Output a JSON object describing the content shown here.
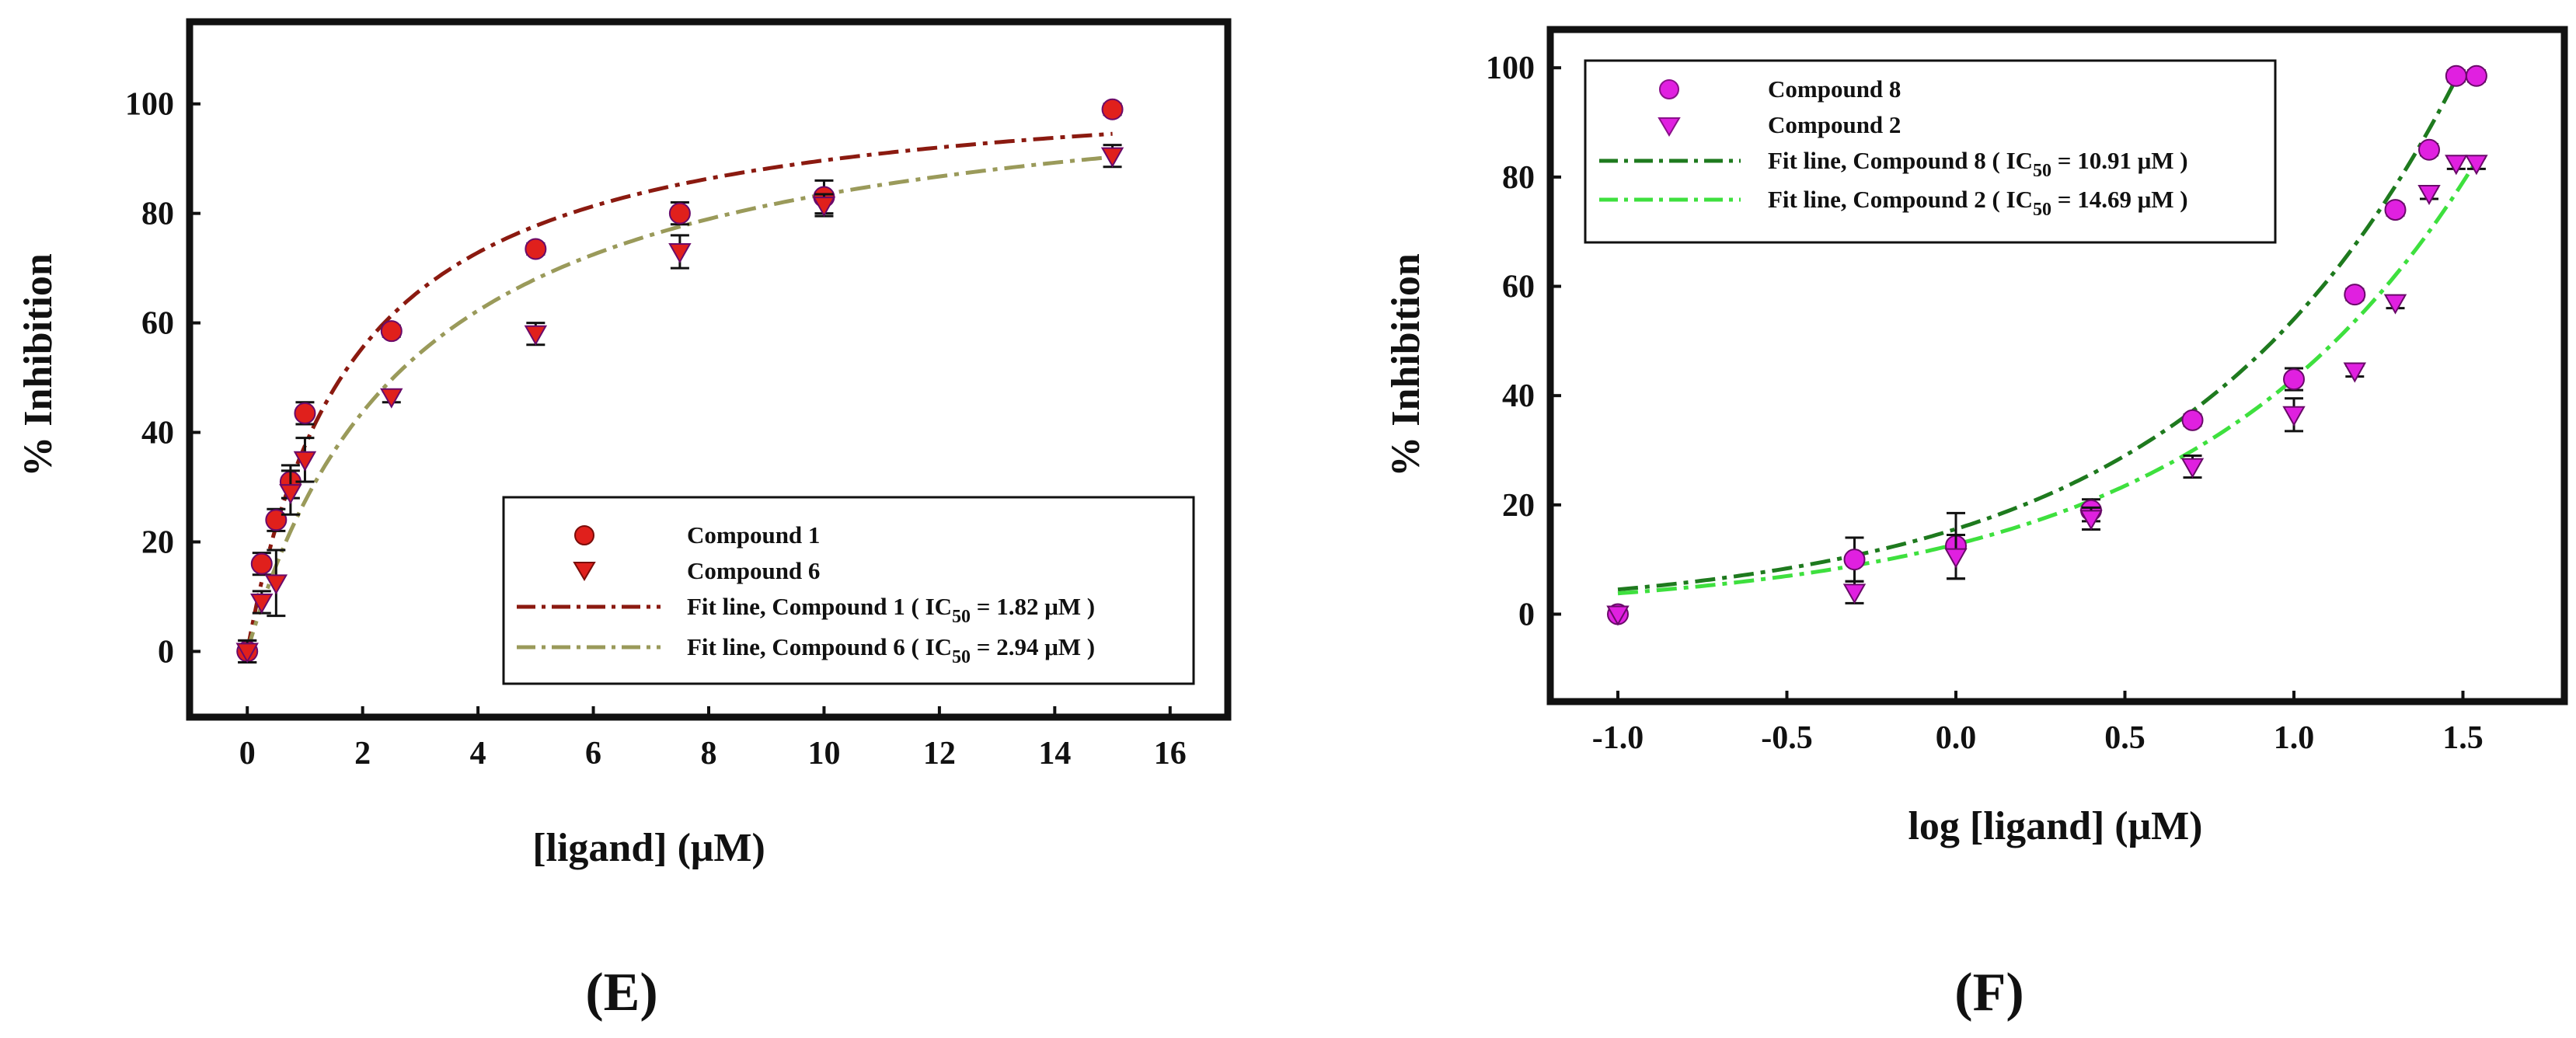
{
  "panels": {
    "E": {
      "label": "(E)"
    },
    "F": {
      "label": "(F)"
    }
  },
  "chart_data": [
    {
      "type": "scatter",
      "panel": "(E)",
      "xlabel": "[ligand] (μM)",
      "ylabel": "% Inhibition",
      "xlim": [
        -1,
        17
      ],
      "ylim": [
        -12,
        115
      ],
      "xticks": [
        0,
        2,
        4,
        6,
        8,
        10,
        12,
        14,
        16
      ],
      "yticks": [
        0,
        20,
        40,
        60,
        80,
        100
      ],
      "legend_position": "bottom-right",
      "series": [
        {
          "name": "Compound 1",
          "marker": "circle",
          "color": "#e0201c",
          "x": [
            0,
            0.25,
            0.5,
            0.75,
            1,
            2.5,
            5,
            7.5,
            10,
            15
          ],
          "y": [
            0,
            16,
            24,
            31,
            43.5,
            58.5,
            73.5,
            80,
            83,
            99
          ],
          "err": [
            2,
            2,
            2,
            3,
            2,
            1,
            1,
            2,
            3,
            1
          ]
        },
        {
          "name": "Compound 6",
          "marker": "triangle-down",
          "color": "#e0201c",
          "x": [
            0,
            0.25,
            0.5,
            0.75,
            1,
            2.5,
            5,
            7.5,
            10,
            15
          ],
          "y": [
            0,
            9,
            12.5,
            29,
            35,
            46.5,
            58,
            73,
            81.5,
            90.5
          ],
          "err": [
            2,
            2,
            6,
            4,
            4,
            1,
            2,
            3,
            2,
            2
          ]
        }
      ],
      "fits": [
        {
          "label_prefix": "Fit line, Compound 1 ( IC",
          "sub": "50",
          "label_suffix": " = 1.82 μM )",
          "color": "#8b1a10",
          "model": "hyperbolic",
          "ic50": 1.82,
          "ymax": 106
        },
        {
          "label_prefix": "Fit line, Compound 6 ( IC",
          "sub": "50",
          "label_suffix": " = 2.94 μM )",
          "color": "#9a9a5a",
          "model": "hyperbolic",
          "ic50": 2.94,
          "ymax": 108
        }
      ]
    },
    {
      "type": "scatter",
      "panel": "(F)",
      "xlabel": "log [ligand] (μM)",
      "ylabel": "% Inhibition",
      "xlim": [
        -1.2,
        1.8
      ],
      "ylim": [
        -16,
        107
      ],
      "xticks": [
        -1.0,
        -0.5,
        0.0,
        0.5,
        1.0,
        1.5
      ],
      "xticklabels": [
        "-1.0",
        "-0.5",
        "0.0",
        "0.5",
        "1.0",
        "1.5"
      ],
      "yticks": [
        0,
        20,
        40,
        60,
        80,
        100
      ],
      "legend_position": "top-left",
      "series": [
        {
          "name": "Compound 8",
          "marker": "circle",
          "color": "#e020e0",
          "x": [
            -1.0,
            -0.3,
            0.0,
            0.4,
            0.7,
            1.0,
            1.18,
            1.3,
            1.4,
            1.48,
            1.54
          ],
          "y": [
            0,
            10,
            12.5,
            19,
            35.5,
            43,
            58.5,
            74,
            85,
            98.5,
            98.5
          ],
          "err": [
            0,
            4,
            6,
            2,
            1,
            2,
            1,
            1,
            1,
            1,
            1
          ]
        },
        {
          "name": "Compound 2",
          "marker": "triangle-down",
          "color": "#e020e0",
          "x": [
            -1.0,
            -0.3,
            0.0,
            0.4,
            0.7,
            1.0,
            1.18,
            1.3,
            1.4,
            1.48,
            1.54
          ],
          "y": [
            0,
            4,
            10.5,
            17.5,
            27,
            36.5,
            44.5,
            57,
            77,
            82.5,
            82.5
          ],
          "err": [
            0,
            2,
            4,
            2,
            2,
            3,
            1,
            1,
            1,
            1,
            1
          ]
        }
      ],
      "fits": [
        {
          "label_prefix": "Fit line, Compound 8 ( IC",
          "sub": "50",
          "label_suffix": " = 10.91 μM )",
          "color": "#1e7a1e",
          "model": "power",
          "x0": -1.0,
          "x1": 1.48,
          "a": 0.35,
          "b": 3.9
        },
        {
          "label_prefix": "Fit line, Compound 2 ( IC",
          "sub": "50",
          "label_suffix": " = 14.69 μM )",
          "color": "#3ee03e",
          "model": "power",
          "x0": -1.0,
          "x1": 1.54,
          "a": 0.28,
          "b": 3.8
        }
      ]
    }
  ]
}
